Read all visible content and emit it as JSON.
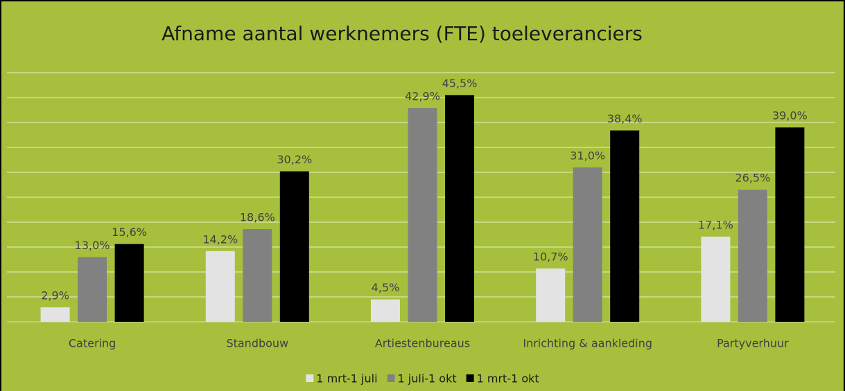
{
  "chart_data": {
    "type": "bar",
    "title": "Afname aantal werknemers (FTE) toeleveranciers",
    "categories": [
      "Catering",
      "Standbouw",
      "Artiestenbureaus",
      "Inrichting & aankleding",
      "Partyverhuur"
    ],
    "series": [
      {
        "name": "1 mrt-1 juli",
        "color": "#e3e3e3",
        "values": [
          2.9,
          14.2,
          4.5,
          10.7,
          17.1
        ],
        "value_labels": [
          "2,9%",
          "14,2%",
          "4,5%",
          "10,7%",
          "17,1%"
        ]
      },
      {
        "name": "1 juli-1 okt",
        "color": "#818181",
        "values": [
          13.0,
          18.6,
          42.9,
          31.0,
          26.5
        ],
        "value_labels": [
          "13,0%",
          "18,6%",
          "42,9%",
          "31,0%",
          "26,5%"
        ]
      },
      {
        "name": "1 mrt-1 okt",
        "color": "#000000",
        "values": [
          15.6,
          30.2,
          45.5,
          38.4,
          39.0
        ],
        "value_labels": [
          "15,6%",
          "30,2%",
          "45,5%",
          "38,4%",
          "39,0%"
        ]
      }
    ],
    "ylim": [
      0,
      50
    ],
    "yticks": [
      0,
      5,
      10,
      15,
      20,
      25,
      30,
      35,
      40,
      45,
      50
    ],
    "grid": true,
    "legend": "bottom"
  }
}
